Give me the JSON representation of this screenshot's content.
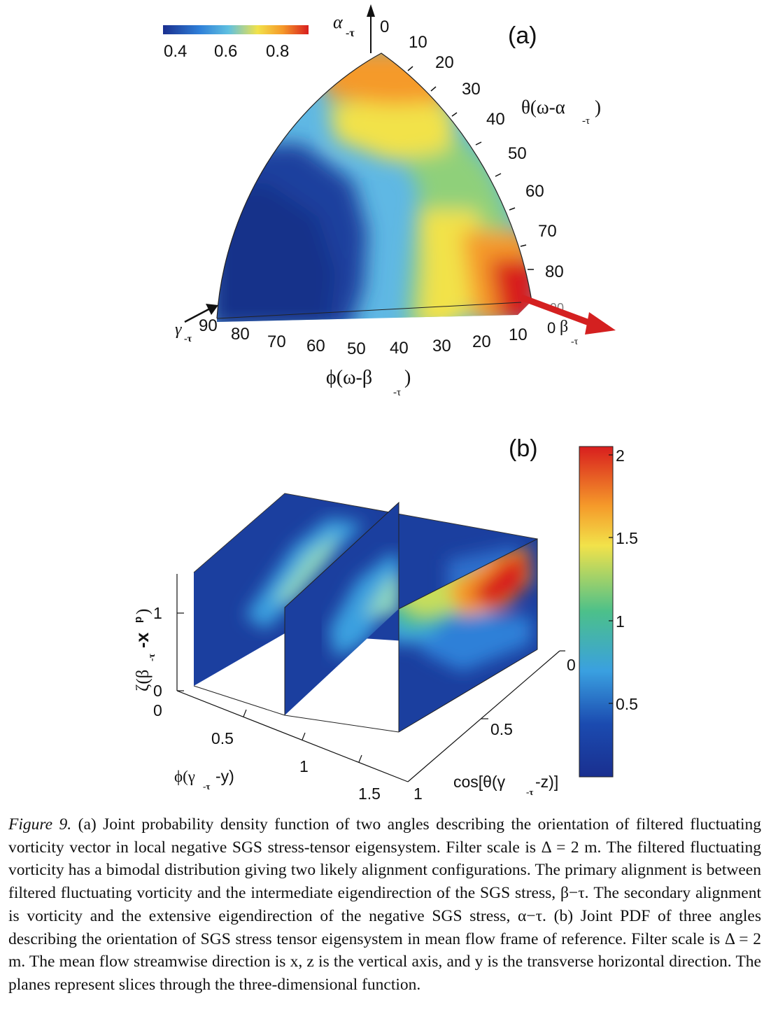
{
  "panel_a": {
    "label": "(a)",
    "colorbar": {
      "ticks": [
        "0.4",
        "0.6",
        "0.8"
      ],
      "stops": [
        "#1a2f8f",
        "#2f7fd8",
        "#5fc0e0",
        "#f2e24a",
        "#f59a2a",
        "#d81e1e"
      ]
    },
    "top_axis": {
      "symbol": "α",
      "sub": "-τ",
      "zero": "0"
    },
    "theta_label": "θ(ω-α",
    "theta_sub": "-τ",
    "theta_close": ")",
    "theta_ticks": [
      "10",
      "20",
      "30",
      "40",
      "50",
      "60",
      "70",
      "80",
      "90"
    ],
    "phi_ticks": [
      "90",
      "80",
      "70",
      "60",
      "50",
      "40",
      "30",
      "20",
      "10"
    ],
    "phi_label": "ϕ(ω-β",
    "phi_sub": "-τ",
    "phi_close": ")",
    "left_axis": {
      "symbol": "γ",
      "sub": "-τ"
    },
    "right_axis": {
      "zero": "0",
      "symbol": "β",
      "sub": "-τ"
    }
  },
  "panel_b": {
    "label": "(b)",
    "colorbar": {
      "ticks": [
        "2",
        "1.5",
        "1",
        "0.5"
      ],
      "stops": [
        "#d81e1e",
        "#f59a2a",
        "#f2e24a",
        "#4cc08a",
        "#3aa0e0",
        "#1b4bb0",
        "#1a2f8f"
      ]
    },
    "z_axis": {
      "ticks": [
        "1",
        "0",
        "0"
      ],
      "label": "ζ(β",
      "label_sub": "-τ",
      "label_tail": "-x",
      "label_sup": "p",
      "label_close": ")"
    },
    "x_axis": {
      "ticks": [
        "0.5",
        "1",
        "1.5"
      ],
      "label": "ϕ(γ",
      "label_sub": "-τ",
      "label_tail": "-y)"
    },
    "y_axis": {
      "ticks": [
        "0",
        "0.5",
        "1"
      ],
      "label": "cos[θ(γ",
      "label_sub": "-τ",
      "label_tail": "-z)]"
    }
  },
  "caption": {
    "fig_label": "Figure 9.",
    "text": " (a) Joint probability density function of two angles describing the orientation of filtered fluctuating vorticity vector in local negative SGS stress-tensor eigensystem. Filter scale is Δ = 2 m. The filtered fluctuating vorticity has a bimodal distribution giving two likely alignment configurations. The primary alignment is between filtered fluctuating vorticity and the intermediate eigendirection of the SGS stress, β−τ. The secondary alignment is vorticity and the extensive eigendirection of the negative SGS stress, α−τ. (b) Joint PDF of three angles describing the orientation of SGS stress tensor eigensystem in mean flow frame of reference. Filter scale is Δ = 2 m. The mean flow streamwise direction is x, z is the vertical axis, and y is the transverse horizontal direction. The planes represent slices through the three-dimensional function."
  }
}
